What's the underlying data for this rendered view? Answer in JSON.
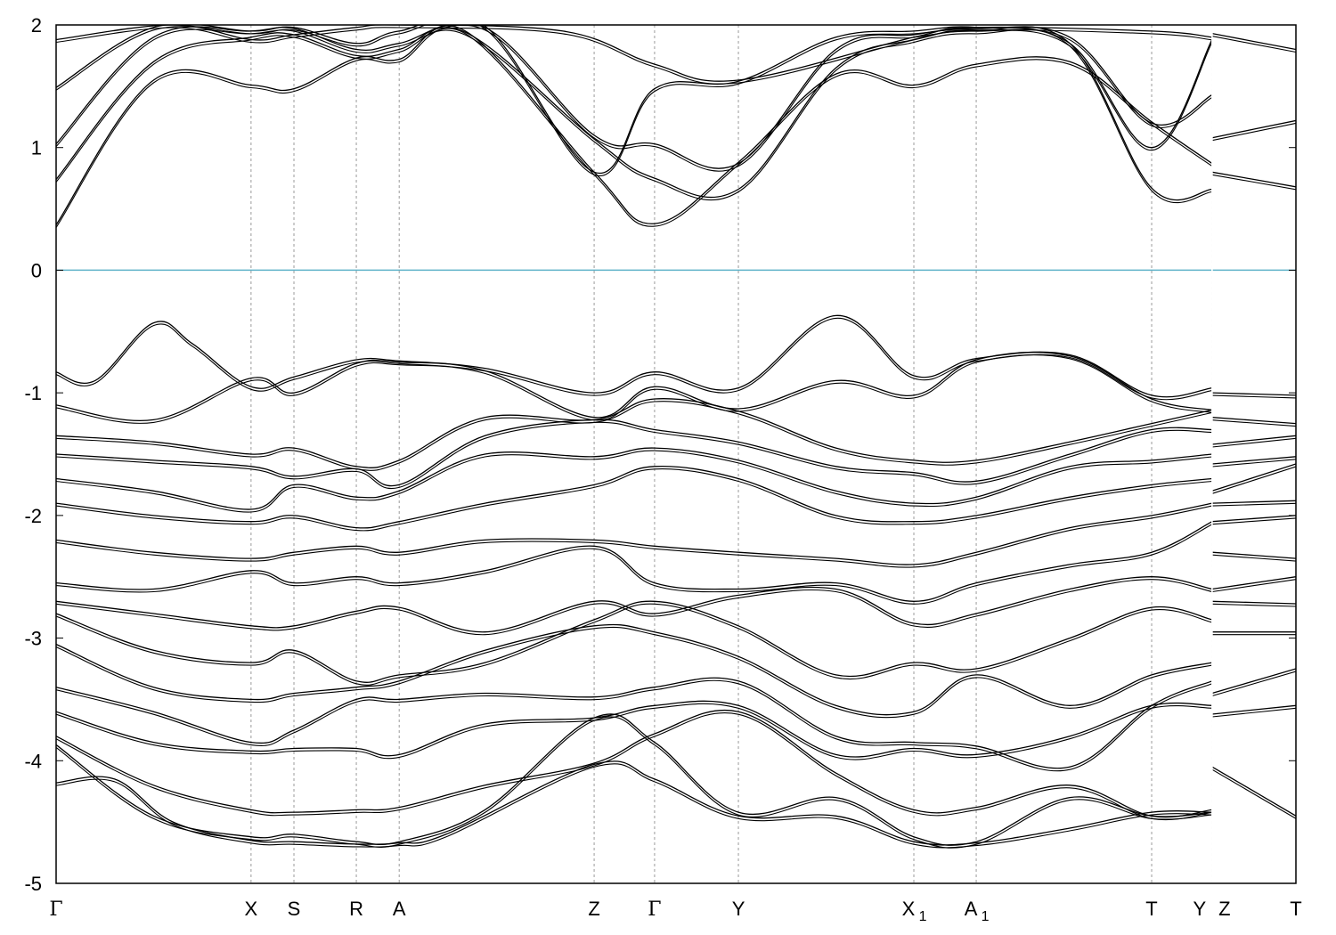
{
  "chart_data": {
    "type": "line",
    "title": "",
    "xlabel": "",
    "ylabel": "",
    "ylim": [
      -5,
      2
    ],
    "yticks": [
      -5,
      -4,
      -3,
      -2,
      -1,
      0,
      1,
      2
    ],
    "grid": "vertical dashed lines at high-symmetry points",
    "fermi_level": {
      "y": 0,
      "color": "#5fb3c9"
    },
    "kpoints": [
      {
        "label": "Γ",
        "sub": "",
        "x": 0.0
      },
      {
        "label": "X",
        "sub": "",
        "x": 1.0
      },
      {
        "label": "S",
        "sub": "",
        "x": 1.22
      },
      {
        "label": "R",
        "sub": "",
        "x": 1.54
      },
      {
        "label": "A",
        "sub": "",
        "x": 1.76
      },
      {
        "label": "Z",
        "sub": "",
        "x": 2.76
      },
      {
        "label": "Γ",
        "sub": "",
        "x": 3.07
      },
      {
        "label": "Y",
        "sub": "",
        "x": 3.5
      },
      {
        "label": "X",
        "sub": "1",
        "x": 4.4
      },
      {
        "label": "A",
        "sub": "1",
        "x": 4.72
      },
      {
        "label": "T",
        "sub": "",
        "x": 5.62
      },
      {
        "label": "Y",
        "sub": "",
        "x": 5.93
      },
      {
        "label": "Z",
        "sub": "",
        "x": 5.93
      },
      {
        "label": "T",
        "sub": "",
        "x": 6.36
      }
    ],
    "series": [
      {
        "x": [
          0,
          0.5,
          1.0,
          1.22,
          1.54,
          1.76,
          2.1,
          2.76,
          3.07,
          3.5,
          4.0,
          4.4,
          4.72,
          5.2,
          5.62,
          5.93
        ],
        "values": [
          0.37,
          1.55,
          1.51,
          1.48,
          1.73,
          1.72,
          1.95,
          0.8,
          0.38,
          0.88,
          1.6,
          1.51,
          1.68,
          1.7,
          1.21,
          0.87
        ]
      },
      {
        "x": [
          0,
          0.5,
          1.0,
          1.22,
          1.54,
          1.76,
          2.1,
          2.76,
          3.07,
          3.5,
          4.0,
          4.4,
          4.72,
          5.2,
          5.62,
          5.93
        ],
        "values": [
          0.74,
          1.7,
          1.9,
          1.92,
          1.75,
          1.8,
          1.94,
          1.07,
          0.75,
          0.66,
          1.65,
          1.88,
          1.95,
          1.85,
          0.67,
          0.66
        ]
      },
      {
        "x": [
          0,
          0.5,
          1.0,
          1.22,
          1.54,
          1.76,
          2.2,
          2.76,
          3.07,
          3.5,
          4.0,
          4.4,
          4.72,
          5.2,
          5.62,
          5.93
        ],
        "values": [
          1.03,
          1.9,
          1.95,
          1.97,
          1.8,
          1.85,
          1.98,
          1.1,
          1.03,
          0.87,
          1.8,
          1.92,
          1.97,
          1.9,
          1.2,
          1.43
        ]
      },
      {
        "x": [
          0,
          0.5,
          1.0,
          1.22,
          1.54,
          1.76,
          2.2,
          2.76,
          3.07,
          3.5,
          4.0,
          4.4,
          4.72,
          5.2,
          5.62,
          5.93
        ],
        "values": [
          1.49,
          1.98,
          1.95,
          1.98,
          1.85,
          1.95,
          1.99,
          0.8,
          1.48,
          1.54,
          1.9,
          1.95,
          1.98,
          1.85,
          1.0,
          1.88
        ]
      },
      {
        "x": [
          0,
          0.6,
          1.0,
          1.22,
          1.54,
          1.76,
          2.6,
          3.07,
          3.5,
          4.4,
          4.72,
          5.62,
          5.93
        ],
        "values": [
          1.88,
          2.0,
          1.88,
          1.92,
          1.98,
          2.0,
          1.95,
          1.68,
          1.55,
          1.9,
          1.98,
          1.95,
          1.9
        ]
      },
      {
        "x": [
          5.93,
          6.36
        ],
        "values": [
          0.8,
          0.68
        ]
      },
      {
        "x": [
          5.93,
          6.36
        ],
        "values": [
          1.08,
          1.22
        ]
      },
      {
        "x": [
          5.93,
          6.36
        ],
        "values": [
          1.93,
          1.8
        ]
      },
      {
        "x": [
          0,
          0.2,
          0.5,
          0.7,
          1.0,
          1.22,
          1.54,
          1.76,
          2.2,
          2.76,
          3.07,
          3.5,
          4.0,
          4.4,
          4.72,
          5.2,
          5.62,
          5.93
        ],
        "values": [
          -0.83,
          -0.9,
          -0.43,
          -0.6,
          -0.95,
          -0.87,
          -0.73,
          -0.74,
          -0.8,
          -1.0,
          -0.83,
          -0.96,
          -0.37,
          -0.86,
          -0.72,
          -0.69,
          -1.02,
          -0.96
        ]
      },
      {
        "x": [
          0,
          0.5,
          1.0,
          1.22,
          1.54,
          1.76,
          2.2,
          2.76,
          3.07,
          3.5,
          4.0,
          4.4,
          4.72,
          5.2,
          5.62,
          5.93
        ],
        "values": [
          -1.1,
          -1.22,
          -0.88,
          -1.0,
          -0.76,
          -0.75,
          -0.82,
          -1.2,
          -0.95,
          -1.13,
          -0.9,
          -1.02,
          -0.73,
          -0.7,
          -1.05,
          -1.14
        ]
      },
      {
        "x": [
          0,
          0.5,
          1.0,
          1.22,
          1.54,
          1.76,
          2.2,
          2.76,
          3.07,
          3.5,
          4.0,
          4.4,
          4.72,
          5.2,
          5.62,
          5.93
        ],
        "values": [
          -1.35,
          -1.4,
          -1.5,
          -1.45,
          -1.6,
          -1.55,
          -1.2,
          -1.22,
          -1.05,
          -1.15,
          -1.45,
          -1.55,
          -1.55,
          -1.4,
          -1.25,
          -1.14
        ]
      },
      {
        "x": [
          0,
          0.5,
          1.0,
          1.22,
          1.54,
          1.76,
          2.2,
          2.76,
          3.07,
          3.5,
          4.0,
          4.4,
          4.72,
          5.2,
          5.62,
          5.93
        ],
        "values": [
          -1.5,
          -1.55,
          -1.6,
          -1.68,
          -1.62,
          -1.75,
          -1.35,
          -1.22,
          -1.3,
          -1.4,
          -1.6,
          -1.65,
          -1.72,
          -1.5,
          -1.3,
          -1.3
        ]
      },
      {
        "x": [
          0,
          0.5,
          1.0,
          1.22,
          1.54,
          1.76,
          2.2,
          2.76,
          3.07,
          3.5,
          4.0,
          4.4,
          4.72,
          5.2,
          5.62,
          5.93
        ],
        "values": [
          -1.7,
          -1.8,
          -1.95,
          -1.75,
          -1.85,
          -1.8,
          -1.5,
          -1.52,
          -1.45,
          -1.55,
          -1.8,
          -1.9,
          -1.85,
          -1.6,
          -1.55,
          -1.5
        ]
      },
      {
        "x": [
          0,
          0.5,
          1.0,
          1.22,
          1.54,
          1.76,
          2.2,
          2.76,
          3.07,
          3.5,
          4.0,
          4.4,
          4.72,
          5.2,
          5.62,
          5.93
        ],
        "values": [
          -1.9,
          -2.0,
          -2.05,
          -2.0,
          -2.1,
          -2.05,
          -1.9,
          -1.75,
          -1.6,
          -1.7,
          -2.0,
          -2.05,
          -2.0,
          -1.85,
          -1.75,
          -1.7
        ]
      },
      {
        "x": [
          0,
          0.5,
          1.0,
          1.22,
          1.54,
          1.76,
          2.2,
          2.76,
          3.07,
          3.5,
          4.0,
          4.4,
          4.72,
          5.2,
          5.62,
          5.93
        ],
        "values": [
          -2.2,
          -2.3,
          -2.35,
          -2.3,
          -2.25,
          -2.3,
          -2.2,
          -2.2,
          -2.25,
          -2.3,
          -2.35,
          -2.4,
          -2.3,
          -2.1,
          -2.0,
          -1.9
        ]
      },
      {
        "x": [
          0,
          0.5,
          1.0,
          1.22,
          1.54,
          1.76,
          2.2,
          2.76,
          3.07,
          3.5,
          4.0,
          4.4,
          4.72,
          5.2,
          5.62,
          5.93
        ],
        "values": [
          -2.55,
          -2.6,
          -2.45,
          -2.55,
          -2.5,
          -2.55,
          -2.45,
          -2.25,
          -2.55,
          -2.6,
          -2.55,
          -2.7,
          -2.55,
          -2.4,
          -2.3,
          -2.05
        ]
      },
      {
        "x": [
          0,
          0.5,
          1.0,
          1.22,
          1.54,
          1.76,
          2.2,
          2.76,
          3.07,
          3.5,
          4.0,
          4.4,
          4.72,
          5.2,
          5.62,
          5.93
        ],
        "values": [
          -2.7,
          -2.8,
          -2.9,
          -2.9,
          -2.78,
          -2.75,
          -2.95,
          -2.7,
          -2.8,
          -2.65,
          -2.6,
          -2.88,
          -2.8,
          -2.6,
          -2.5,
          -2.6
        ]
      },
      {
        "x": [
          0,
          0.5,
          1.0,
          1.22,
          1.54,
          1.76,
          2.2,
          2.76,
          3.07,
          3.5,
          4.0,
          4.4,
          4.72,
          5.2,
          5.62,
          5.93
        ],
        "values": [
          -2.8,
          -3.1,
          -3.2,
          -3.1,
          -3.35,
          -3.3,
          -3.2,
          -2.85,
          -2.7,
          -2.9,
          -3.3,
          -3.2,
          -3.25,
          -3.0,
          -2.75,
          -2.85
        ]
      },
      {
        "x": [
          0,
          0.5,
          1.0,
          1.22,
          1.54,
          1.76,
          2.2,
          2.76,
          3.07,
          3.5,
          4.0,
          4.4,
          4.72,
          5.2,
          5.62,
          5.93
        ],
        "values": [
          -3.05,
          -3.4,
          -3.5,
          -3.45,
          -3.4,
          -3.35,
          -3.1,
          -2.9,
          -2.95,
          -3.15,
          -3.55,
          -3.6,
          -3.3,
          -3.55,
          -3.3,
          -3.2
        ]
      },
      {
        "x": [
          0,
          0.5,
          1.0,
          1.22,
          1.54,
          1.76,
          2.2,
          2.76,
          3.07,
          3.5,
          4.0,
          4.4,
          4.72,
          5.2,
          5.62,
          5.93
        ],
        "values": [
          -3.4,
          -3.6,
          -3.85,
          -3.75,
          -3.5,
          -3.5,
          -3.45,
          -3.48,
          -3.4,
          -3.35,
          -3.8,
          -3.85,
          -3.88,
          -4.05,
          -3.55,
          -3.35
        ]
      },
      {
        "x": [
          0,
          0.5,
          1.0,
          1.22,
          1.54,
          1.76,
          2.2,
          2.76,
          3.07,
          3.5,
          4.0,
          4.4,
          4.72,
          5.2,
          5.62,
          5.93
        ],
        "values": [
          -3.6,
          -3.85,
          -3.92,
          -3.9,
          -3.9,
          -3.95,
          -3.7,
          -3.65,
          -3.55,
          -3.55,
          -3.95,
          -3.9,
          -3.95,
          -3.8,
          -3.55,
          -3.55
        ]
      },
      {
        "x": [
          0,
          0.5,
          1.0,
          1.22,
          1.54,
          1.76,
          2.2,
          2.76,
          3.07,
          3.5,
          4.0,
          4.4,
          4.72,
          5.2,
          5.62,
          5.93
        ],
        "values": [
          -3.8,
          -4.2,
          -4.4,
          -4.42,
          -4.4,
          -4.38,
          -4.2,
          -4.02,
          -3.78,
          -3.6,
          -4.1,
          -4.4,
          -4.38,
          -4.2,
          -4.45,
          -4.4
        ]
      },
      {
        "x": [
          0,
          0.5,
          1.0,
          1.22,
          1.54,
          1.76,
          2.2,
          2.76,
          3.07,
          3.5,
          4.0,
          4.4,
          4.72,
          5.2,
          5.62,
          5.93
        ],
        "values": [
          -3.87,
          -4.45,
          -4.62,
          -4.6,
          -4.66,
          -4.66,
          -4.4,
          -3.65,
          -3.85,
          -4.42,
          -4.3,
          -4.62,
          -4.66,
          -4.3,
          -4.45,
          -4.42
        ]
      },
      {
        "x": [
          0,
          0.3,
          0.6,
          1.0,
          1.22,
          1.54,
          1.76,
          2.0,
          2.76,
          3.07,
          3.5,
          4.0,
          4.4,
          4.72,
          5.2,
          5.62,
          5.93
        ],
        "values": [
          -4.18,
          -4.15,
          -4.5,
          -4.65,
          -4.66,
          -4.68,
          -4.67,
          -4.6,
          -4.03,
          -4.15,
          -4.45,
          -4.45,
          -4.66,
          -4.67,
          -4.55,
          -4.42,
          -4.42
        ]
      },
      {
        "x": [
          5.93,
          6.36
        ],
        "values": [
          -1.0,
          -1.02
        ]
      },
      {
        "x": [
          5.93,
          6.36
        ],
        "values": [
          -1.2,
          -1.25
        ]
      },
      {
        "x": [
          5.93,
          6.36
        ],
        "values": [
          -1.42,
          -1.35
        ]
      },
      {
        "x": [
          5.93,
          6.36
        ],
        "values": [
          -1.58,
          -1.52
        ]
      },
      {
        "x": [
          5.93,
          6.36
        ],
        "values": [
          -1.8,
          -1.58
        ]
      },
      {
        "x": [
          5.93,
          6.36
        ],
        "values": [
          -1.9,
          -1.88
        ]
      },
      {
        "x": [
          5.93,
          6.36
        ],
        "values": [
          -2.05,
          -2.0
        ]
      },
      {
        "x": [
          5.93,
          6.36
        ],
        "values": [
          -2.3,
          -2.35
        ]
      },
      {
        "x": [
          5.93,
          6.36
        ],
        "values": [
          -2.6,
          -2.5
        ]
      },
      {
        "x": [
          5.93,
          6.36
        ],
        "values": [
          -2.7,
          -2.72
        ]
      },
      {
        "x": [
          5.93,
          6.36
        ],
        "values": [
          -2.95,
          -2.95
        ]
      },
      {
        "x": [
          5.93,
          6.36
        ],
        "values": [
          -3.45,
          -3.25
        ]
      },
      {
        "x": [
          5.93,
          6.36
        ],
        "values": [
          -3.62,
          -3.55
        ]
      },
      {
        "x": [
          5.93,
          6.36
        ],
        "values": [
          -4.05,
          -4.45
        ]
      }
    ]
  },
  "colors": {
    "band": "#000000",
    "fermi": "#5fb3c9",
    "grid": "#9a9a9a"
  }
}
